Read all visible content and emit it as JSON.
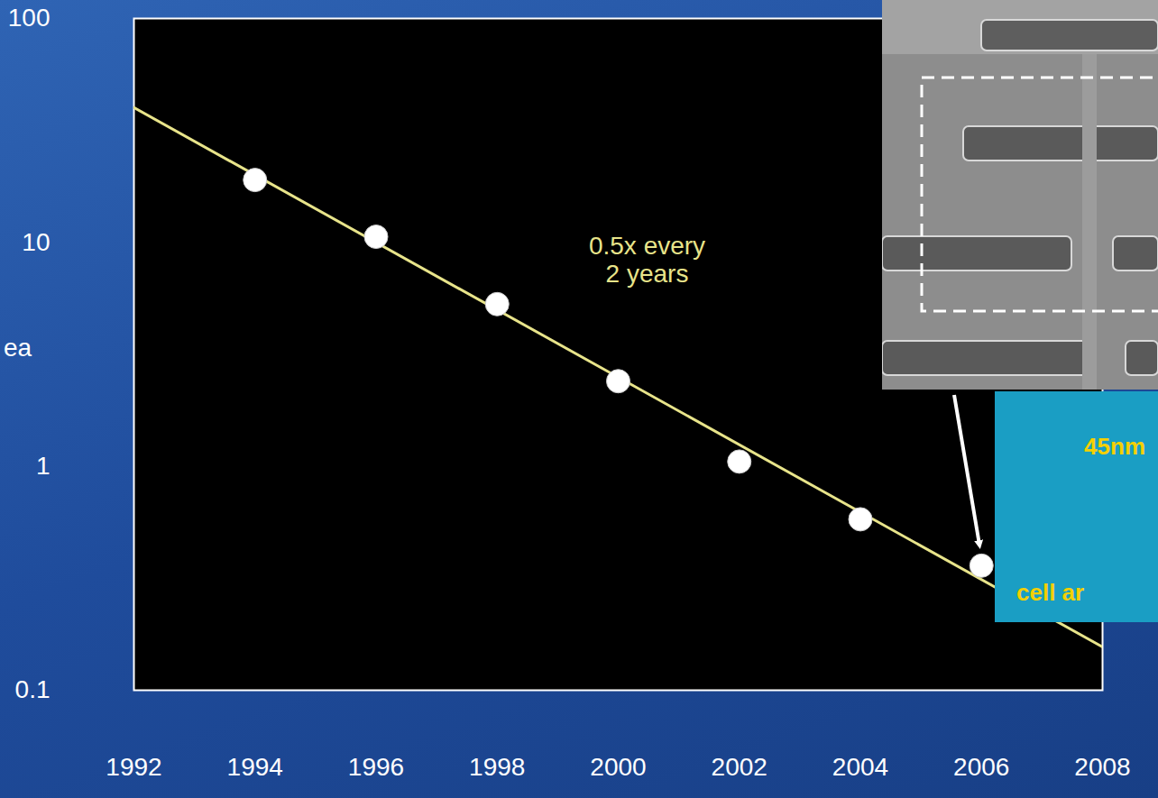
{
  "chart_data": {
    "type": "scatter",
    "y_label": "ea",
    "x": [
      1994,
      1996,
      1998,
      2000,
      2002,
      2004,
      2006
    ],
    "values": [
      19,
      10.6,
      5.3,
      2.4,
      1.05,
      0.58,
      0.36
    ],
    "color": "#ffffff",
    "marker": "circle",
    "trend_line": {
      "type": "line",
      "x": [
        1992,
        2008
      ],
      "values": [
        40,
        0.156
      ],
      "color": "#e8e48a"
    },
    "annotation": [
      "0.5x every",
      "2 years"
    ],
    "callout": [
      "45nm",
      "cell ar"
    ],
    "xlim": [
      1992,
      2008
    ],
    "xticks": [
      1992,
      1994,
      1996,
      1998,
      2000,
      2002,
      2004,
      2006,
      2008
    ],
    "ylim": [
      0.1,
      100
    ],
    "yticks": [
      0.1,
      1,
      10,
      100
    ],
    "log": "y",
    "grid": false
  }
}
